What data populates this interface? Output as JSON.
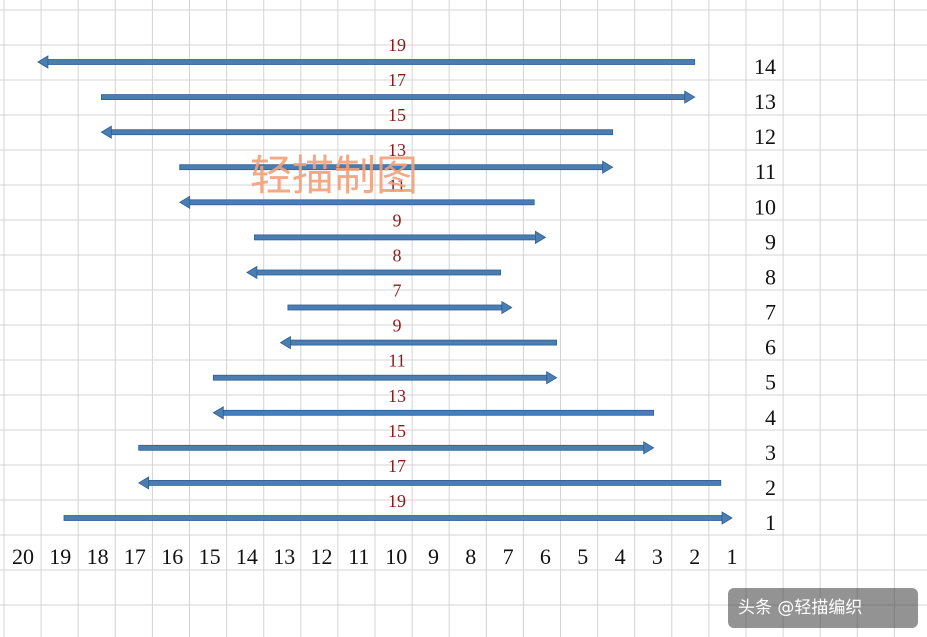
{
  "watermark_text": "轻描制图",
  "credit_text": "头条 @轻描编织",
  "column_labels": [
    "20",
    "19",
    "18",
    "17",
    "16",
    "15",
    "14",
    "13",
    "12",
    "11",
    "10",
    "9",
    "8",
    "7",
    "6",
    "5",
    "4",
    "3",
    "2",
    "1"
  ],
  "rows": [
    {
      "row": "14",
      "count": "19",
      "direction": "left",
      "from_col": 2.0,
      "to_col": 19.6
    },
    {
      "row": "13",
      "count": "17",
      "direction": "right",
      "from_col": 17.9,
      "to_col": 2.0
    },
    {
      "row": "12",
      "count": "15",
      "direction": "left",
      "from_col": 4.2,
      "to_col": 17.9
    },
    {
      "row": "11",
      "count": "13",
      "direction": "right",
      "from_col": 15.8,
      "to_col": 4.2
    },
    {
      "row": "10",
      "count": "11",
      "direction": "left",
      "from_col": 6.3,
      "to_col": 15.8
    },
    {
      "row": "9",
      "count": "9",
      "direction": "right",
      "from_col": 13.8,
      "to_col": 6.0
    },
    {
      "row": "8",
      "count": "8",
      "direction": "left",
      "from_col": 7.2,
      "to_col": 14.0
    },
    {
      "row": "7",
      "count": "7",
      "direction": "right",
      "from_col": 12.9,
      "to_col": 6.9
    },
    {
      "row": "6",
      "count": "9",
      "direction": "left",
      "from_col": 5.7,
      "to_col": 13.1
    },
    {
      "row": "5",
      "count": "11",
      "direction": "right",
      "from_col": 14.9,
      "to_col": 5.7
    },
    {
      "row": "4",
      "count": "13",
      "direction": "left",
      "from_col": 3.1,
      "to_col": 14.9
    },
    {
      "row": "3",
      "count": "15",
      "direction": "right",
      "from_col": 16.9,
      "to_col": 3.1
    },
    {
      "row": "2",
      "count": "17",
      "direction": "left",
      "from_col": 1.3,
      "to_col": 16.9
    },
    {
      "row": "1",
      "count": "19",
      "direction": "right",
      "from_col": 18.9,
      "to_col": 1.0
    }
  ],
  "colors": {
    "arrow": "#4a7eb3",
    "arrow_edge": "#2f5f93",
    "grid": "#d4d4d4",
    "count_text": "#8b1a1a",
    "watermark": "#f0a07a",
    "credit_bg": "#3a3a3a"
  }
}
